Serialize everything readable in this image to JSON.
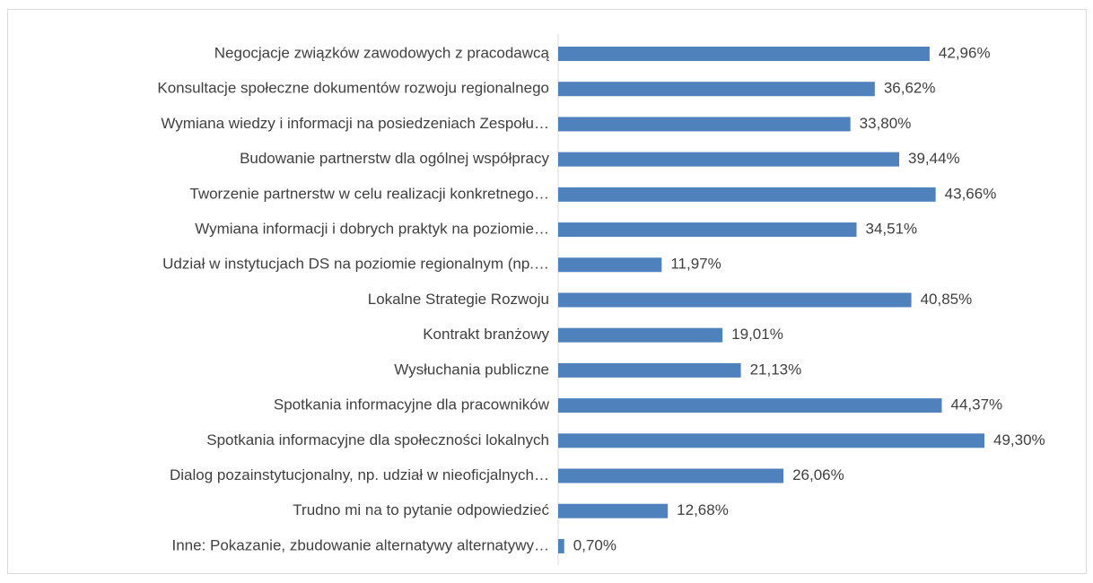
{
  "chart_data": {
    "type": "bar",
    "orientation": "horizontal",
    "color": "#4f81bd",
    "categories": [
      "Negocjacje związków zawodowych z pracodawcą",
      "Konsultacje społeczne dokumentów rozwoju regionalnego",
      "Wymiana wiedzy i informacji na posiedzeniach Zespołu…",
      "Budowanie partnerstw dla ogólnej współpracy",
      "Tworzenie partnerstw w celu realizacji konkretnego…",
      "Wymiana informacji i dobrych praktyk na poziomie…",
      "Udział w instytucjach DS na poziomie regionalnym (np.…",
      "Lokalne Strategie Rozwoju",
      "Kontrakt branżowy",
      "Wysłuchania publiczne",
      "Spotkania informacyjne dla pracowników",
      "Spotkania informacyjne dla społeczności lokalnych",
      "Dialog pozainstytucjonalny, np. udział w nieoficjalnych…",
      "Trudno mi na to pytanie odpowiedzieć",
      "Inne: Pokazanie, zbudowanie alternatywy  alternatywy…"
    ],
    "values": [
      42.96,
      36.62,
      33.8,
      39.44,
      43.66,
      34.51,
      11.97,
      40.85,
      19.01,
      21.13,
      44.37,
      49.3,
      26.06,
      12.68,
      0.7
    ],
    "value_labels": [
      "42,96%",
      "36,62%",
      "33,80%",
      "39,44%",
      "43,66%",
      "34,51%",
      "11,97%",
      "40,85%",
      "19,01%",
      "21,13%",
      "44,37%",
      "49,30%",
      "26,06%",
      "12,68%",
      "0,70%"
    ]
  }
}
